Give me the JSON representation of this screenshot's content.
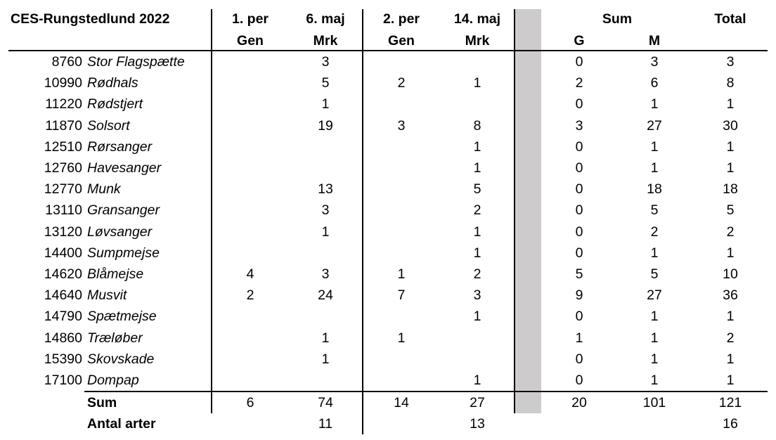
{
  "title": "CES-Rungstedlund 2022",
  "headers": {
    "row1": [
      "1. per",
      "6. maj",
      "2. per",
      "14. maj",
      "Sum",
      "Total"
    ],
    "row2": [
      "Gen",
      "Mrk",
      "Gen",
      "Mrk",
      "G",
      "M"
    ]
  },
  "rows": [
    {
      "code": "8760",
      "species": "Stor Flagspætte",
      "p1_gen": "",
      "d1_mrk": "3",
      "p2_gen": "",
      "d2_mrk": "",
      "g": "0",
      "m": "3",
      "total": "3"
    },
    {
      "code": "10990",
      "species": "Rødhals",
      "p1_gen": "",
      "d1_mrk": "5",
      "p2_gen": "2",
      "d2_mrk": "1",
      "g": "2",
      "m": "6",
      "total": "8"
    },
    {
      "code": "11220",
      "species": "Rødstjert",
      "p1_gen": "",
      "d1_mrk": "1",
      "p2_gen": "",
      "d2_mrk": "",
      "g": "0",
      "m": "1",
      "total": "1"
    },
    {
      "code": "11870",
      "species": "Solsort",
      "p1_gen": "",
      "d1_mrk": "19",
      "p2_gen": "3",
      "d2_mrk": "8",
      "g": "3",
      "m": "27",
      "total": "30"
    },
    {
      "code": "12510",
      "species": "Rørsanger",
      "p1_gen": "",
      "d1_mrk": "",
      "p2_gen": "",
      "d2_mrk": "1",
      "g": "0",
      "m": "1",
      "total": "1"
    },
    {
      "code": "12760",
      "species": "Havesanger",
      "p1_gen": "",
      "d1_mrk": "",
      "p2_gen": "",
      "d2_mrk": "1",
      "g": "0",
      "m": "1",
      "total": "1"
    },
    {
      "code": "12770",
      "species": "Munk",
      "p1_gen": "",
      "d1_mrk": "13",
      "p2_gen": "",
      "d2_mrk": "5",
      "g": "0",
      "m": "18",
      "total": "18"
    },
    {
      "code": "13110",
      "species": "Gransanger",
      "p1_gen": "",
      "d1_mrk": "3",
      "p2_gen": "",
      "d2_mrk": "2",
      "g": "0",
      "m": "5",
      "total": "5"
    },
    {
      "code": "13120",
      "species": "Løvsanger",
      "p1_gen": "",
      "d1_mrk": "1",
      "p2_gen": "",
      "d2_mrk": "1",
      "g": "0",
      "m": "2",
      "total": "2"
    },
    {
      "code": "14400",
      "species": "Sumpmejse",
      "p1_gen": "",
      "d1_mrk": "",
      "p2_gen": "",
      "d2_mrk": "1",
      "g": "0",
      "m": "1",
      "total": "1"
    },
    {
      "code": "14620",
      "species": "Blåmejse",
      "p1_gen": "4",
      "d1_mrk": "3",
      "p2_gen": "1",
      "d2_mrk": "2",
      "g": "5",
      "m": "5",
      "total": "10"
    },
    {
      "code": "14640",
      "species": "Musvit",
      "p1_gen": "2",
      "d1_mrk": "24",
      "p2_gen": "7",
      "d2_mrk": "3",
      "g": "9",
      "m": "27",
      "total": "36"
    },
    {
      "code": "14790",
      "species": "Spætmejse",
      "p1_gen": "",
      "d1_mrk": "",
      "p2_gen": "",
      "d2_mrk": "1",
      "g": "0",
      "m": "1",
      "total": "1"
    },
    {
      "code": "14860",
      "species": "Træløber",
      "p1_gen": "",
      "d1_mrk": "1",
      "p2_gen": "1",
      "d2_mrk": "",
      "g": "1",
      "m": "1",
      "total": "2"
    },
    {
      "code": "15390",
      "species": "Skovskade",
      "p1_gen": "",
      "d1_mrk": "1",
      "p2_gen": "",
      "d2_mrk": "",
      "g": "0",
      "m": "1",
      "total": "1"
    },
    {
      "code": "17100",
      "species": "Dompap",
      "p1_gen": "",
      "d1_mrk": "",
      "p2_gen": "",
      "d2_mrk": "1",
      "g": "0",
      "m": "1",
      "total": "1"
    }
  ],
  "sum_row": {
    "label": "Sum",
    "p1_gen": "6",
    "d1_mrk": "74",
    "p2_gen": "14",
    "d2_mrk": "27",
    "g": "20",
    "m": "101",
    "total": "121"
  },
  "species_row": {
    "label": "Antal arter",
    "d1_mrk": "11",
    "d2_mrk": "13",
    "total": "16"
  }
}
